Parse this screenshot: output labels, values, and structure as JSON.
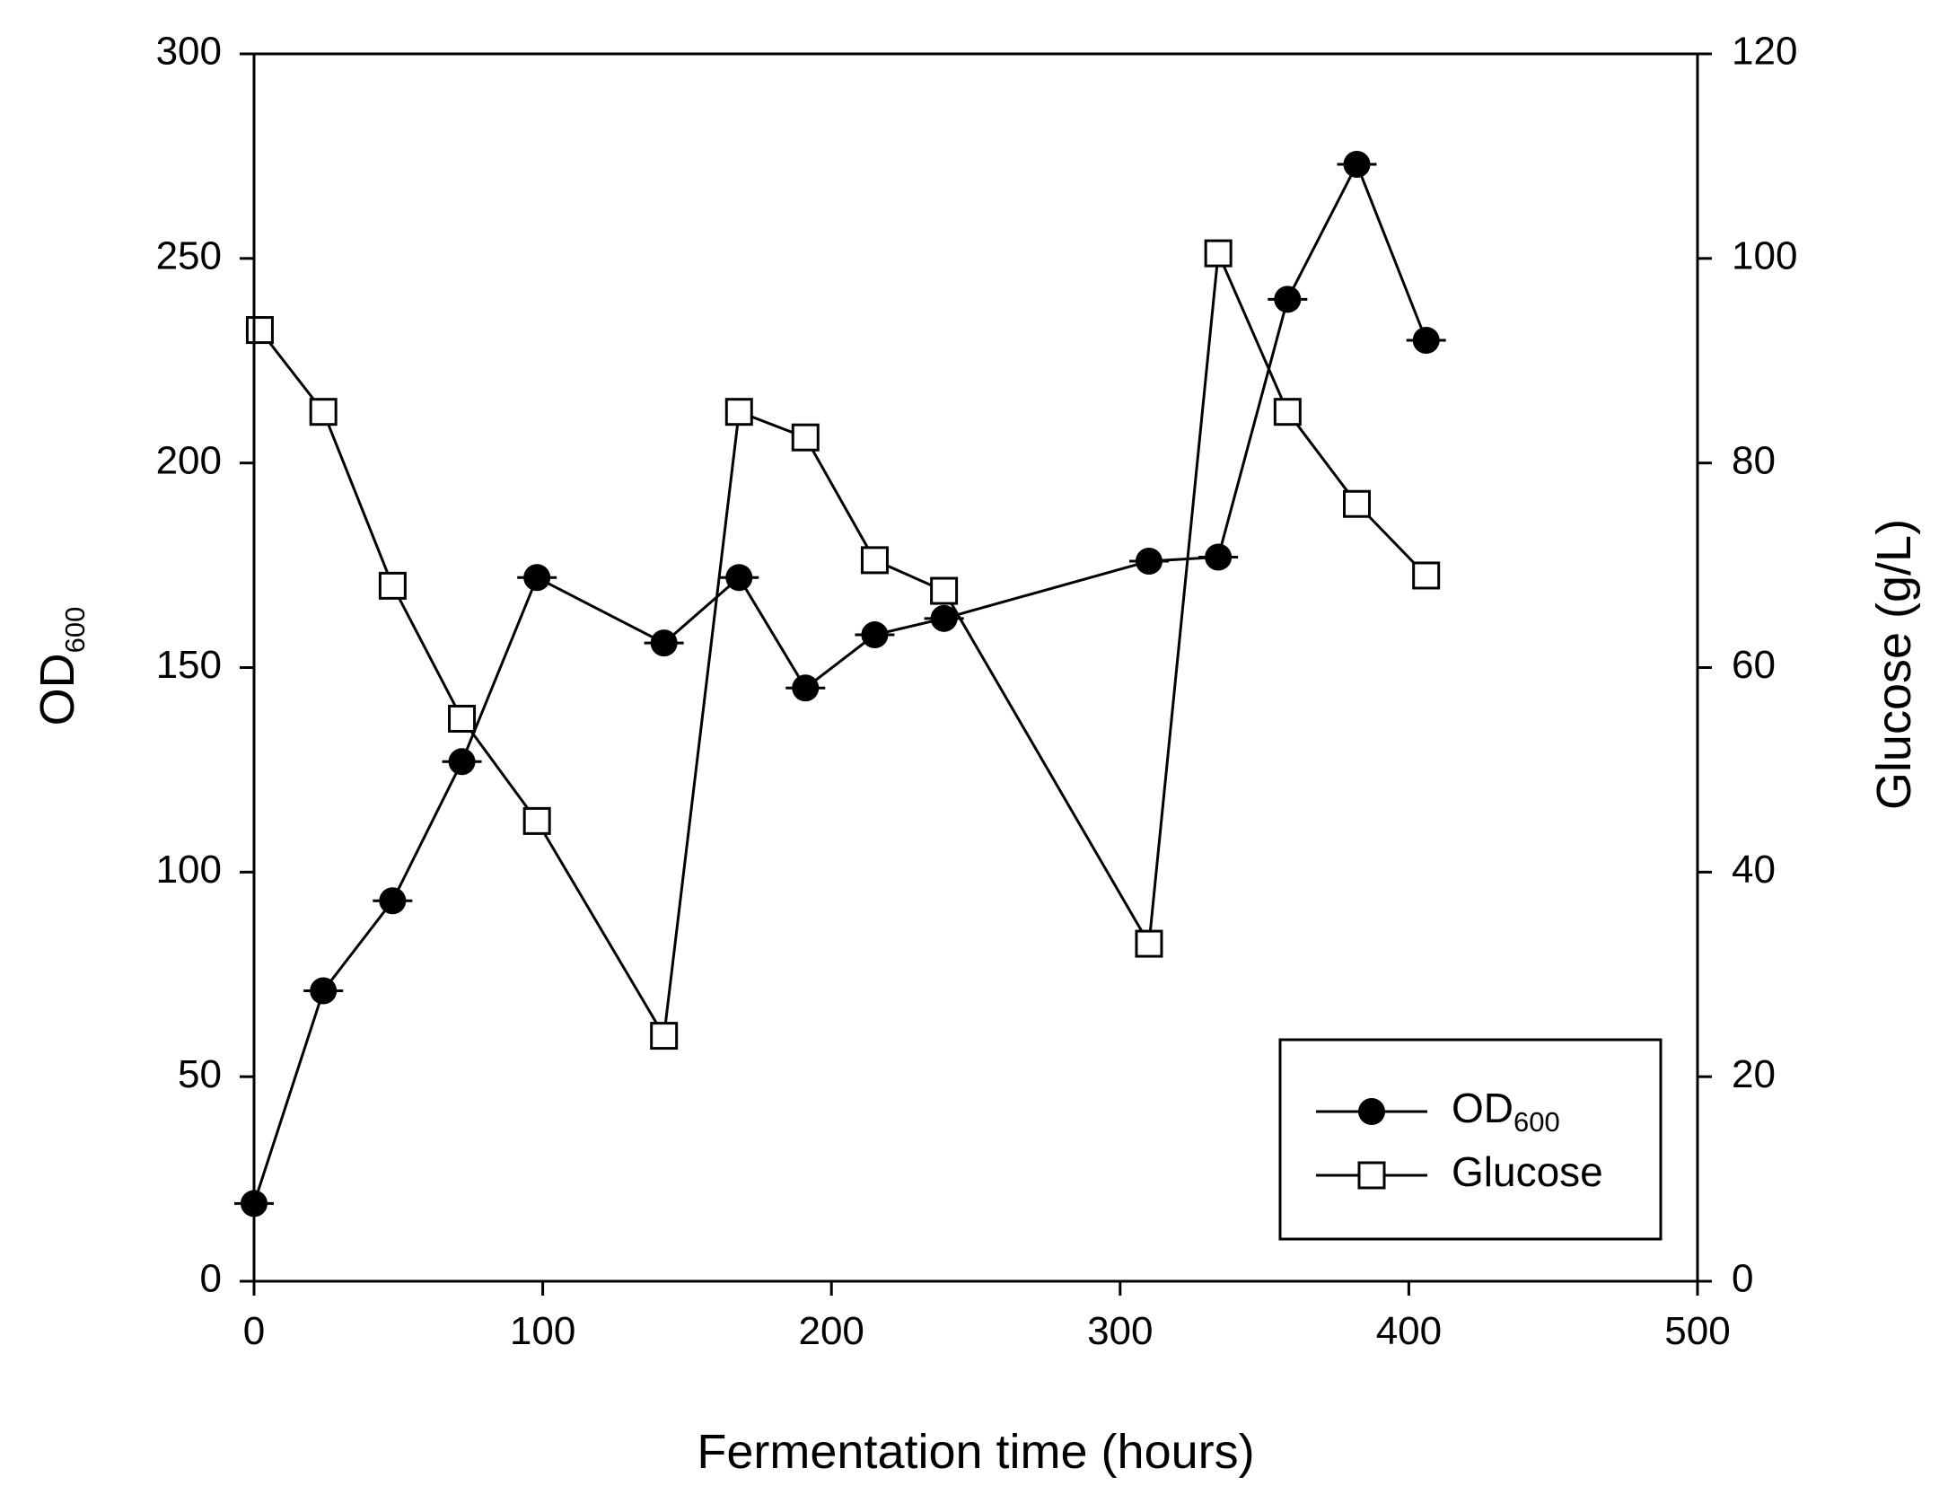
{
  "chart_data": {
    "type": "line",
    "title": "",
    "xlabel": "Fermentation time (hours)",
    "ylabel": "OD",
    "ylabel_subscript": "600",
    "y2label": "Glucose (g/L)",
    "xlim": [
      0,
      500
    ],
    "ylim": [
      0,
      300
    ],
    "y2lim": [
      0,
      120
    ],
    "xticks": [
      "0",
      "100",
      "200",
      "300",
      "400",
      "500"
    ],
    "yticks": [
      "0",
      "50",
      "100",
      "150",
      "200",
      "250",
      "300"
    ],
    "y2ticks": [
      "0",
      "20",
      "40",
      "60",
      "80",
      "100",
      "120"
    ],
    "grid": false,
    "legend_position": "bottom-right",
    "series": [
      {
        "name": "OD",
        "name_subscript": "600",
        "axis": "left",
        "marker": "filled-circle",
        "x": [
          0,
          24,
          48,
          72,
          98,
          142,
          168,
          191,
          215,
          239,
          310,
          334,
          358,
          382,
          406
        ],
        "values": [
          19,
          71,
          93,
          127,
          172,
          156,
          172,
          145,
          158,
          162,
          176,
          177,
          240,
          273,
          230
        ]
      },
      {
        "name": "Glucose",
        "axis": "right",
        "marker": "open-square",
        "x": [
          2,
          24,
          48,
          72,
          98,
          142,
          168,
          191,
          215,
          239,
          310,
          334,
          358,
          382,
          406
        ],
        "values": [
          93,
          85,
          68,
          55,
          45,
          24,
          85,
          82.5,
          70.5,
          67.5,
          33,
          100.5,
          85,
          76,
          69
        ]
      }
    ]
  }
}
